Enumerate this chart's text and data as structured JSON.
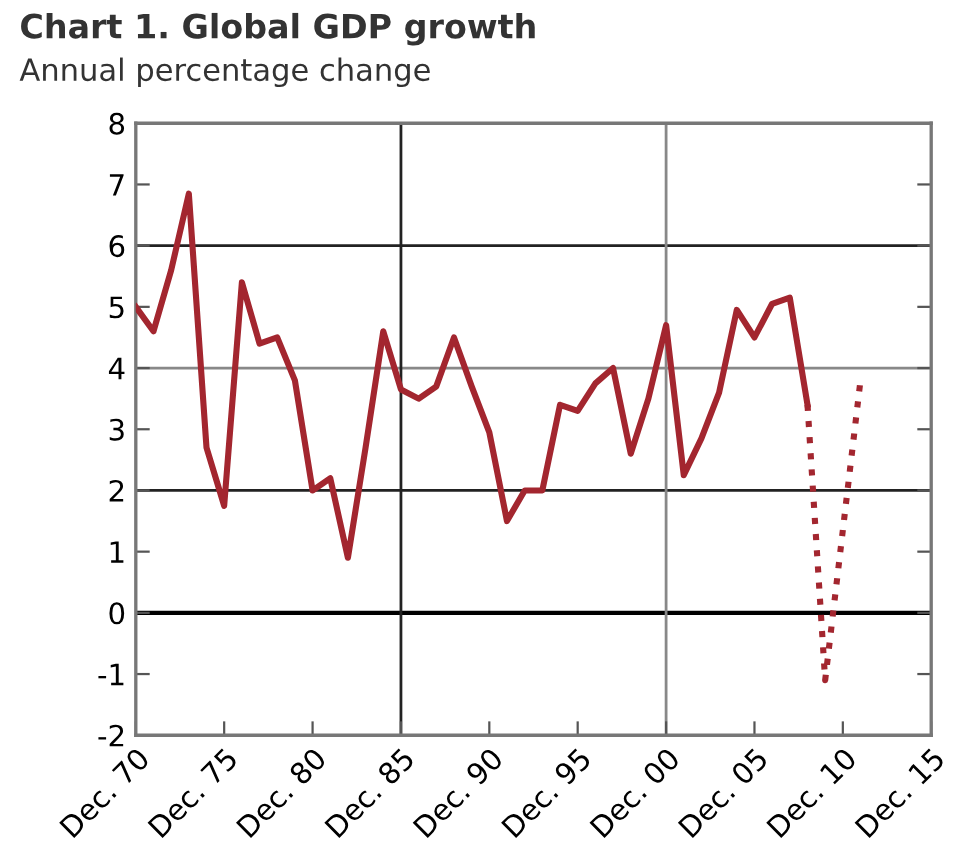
{
  "chart_data": {
    "type": "line",
    "title": "Chart 1. Global GDP growth",
    "subtitle": "Annual percentage change",
    "series": [
      {
        "color": "#a3262f",
        "line_style": "solid",
        "x": [
          "1970-12",
          "1971-12",
          "1972-12",
          "1973-12",
          "1974-12",
          "1975-12",
          "1976-12",
          "1977-12",
          "1978-12",
          "1979-12",
          "1980-12",
          "1981-12",
          "1982-12",
          "1983-12",
          "1984-12",
          "1985-12",
          "1986-12",
          "1987-12",
          "1988-12",
          "1989-12",
          "1990-12",
          "1991-12",
          "1992-12",
          "1993-12",
          "1994-12",
          "1995-12",
          "1996-12",
          "1997-12",
          "1998-12",
          "1999-12",
          "2000-12",
          "2001-12",
          "2002-12",
          "2003-12",
          "2004-12",
          "2005-12",
          "2006-12",
          "2007-12",
          "2008-12"
        ],
        "values": [
          5.0,
          4.6,
          5.6,
          6.85,
          2.7,
          1.75,
          5.4,
          4.4,
          4.5,
          3.8,
          2.0,
          2.2,
          0.9,
          2.7,
          4.6,
          3.65,
          3.5,
          3.7,
          4.5,
          3.7,
          2.95,
          1.5,
          2.0,
          2.0,
          3.4,
          3.3,
          3.75,
          4.0,
          2.6,
          3.5,
          4.7,
          2.25,
          2.85,
          3.6,
          4.95,
          4.5,
          5.05,
          5.15,
          3.4
        ]
      },
      {
        "color": "#a3262f",
        "line_style": "dotted",
        "x": [
          "2008-12",
          "2009-12",
          "2011-12"
        ],
        "values": [
          3.4,
          -1.1,
          3.8
        ]
      }
    ],
    "xlim": [
      "1970-12",
      "2015-12"
    ],
    "xticks": [
      {
        "value": "1970-12",
        "label": "Dec. 70"
      },
      {
        "value": "1975-12",
        "label": "Dec. 75"
      },
      {
        "value": "1980-12",
        "label": "Dec. 80"
      },
      {
        "value": "1985-12",
        "label": "Dec. 85"
      },
      {
        "value": "1990-12",
        "label": "Dec. 90"
      },
      {
        "value": "1995-12",
        "label": "Dec. 95"
      },
      {
        "value": "2000-12",
        "label": "Dec. 00"
      },
      {
        "value": "2005-12",
        "label": "Dec. 05"
      },
      {
        "value": "2010-12",
        "label": "Dec. 10"
      },
      {
        "value": "2015-12",
        "label": "Dec. 15"
      }
    ],
    "ylim": [
      -2,
      8
    ],
    "yticks": [
      -2,
      -1,
      0,
      1,
      2,
      3,
      4,
      5,
      6,
      7,
      8
    ],
    "ref_lines": [
      {
        "axis": "y",
        "value": 0,
        "color": "#000000"
      },
      {
        "axis": "y",
        "value": 2,
        "color": "#222222"
      },
      {
        "axis": "y",
        "value": 4,
        "color": "#888888"
      },
      {
        "axis": "y",
        "value": 6,
        "color": "#222222"
      },
      {
        "axis": "x",
        "value": "1985-12",
        "color": "#222222"
      },
      {
        "axis": "x",
        "value": "2000-12",
        "color": "#888888"
      }
    ],
    "legend": false
  }
}
